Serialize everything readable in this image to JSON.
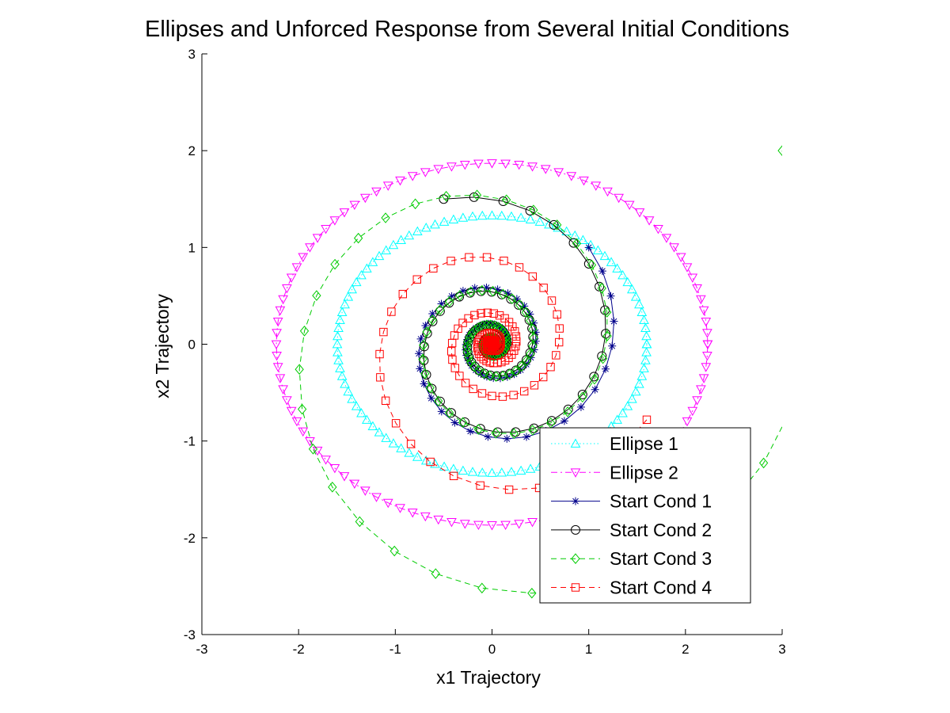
{
  "chart_data": {
    "type": "line",
    "title": "Ellipses and Unforced Response from Several Initial Conditions",
    "xlabel": "x1 Trajectory",
    "ylabel": "x2 Trajectory",
    "xlim": [
      -3,
      3
    ],
    "ylim": [
      -3,
      3
    ],
    "xticks": [
      "-3",
      "-2",
      "-1",
      "0",
      "1",
      "2",
      "3"
    ],
    "yticks": [
      "3",
      "2",
      "1",
      "0",
      "-1",
      "-2",
      "-3"
    ],
    "grid": false,
    "legend_position": "bottom-right",
    "series": [
      {
        "name": "Ellipse 1",
        "kind": "ellipse",
        "rx": 1.6,
        "ry": 1.33,
        "samples": 100,
        "color": "#00ffff",
        "line": "dotted",
        "marker": "triangle-up"
      },
      {
        "name": "Ellipse 2",
        "kind": "ellipse",
        "rx": 2.23,
        "ry": 1.87,
        "samples": 100,
        "color": "#ff00ff",
        "line": "dashdot",
        "marker": "triangle-down"
      },
      {
        "name": "Start Cond 1",
        "kind": "spiral",
        "start": [
          1.0,
          1.0
        ],
        "a": -0.0325,
        "w": 0.2,
        "steps": 130,
        "color": "#00008b",
        "line": "solid",
        "marker": "star"
      },
      {
        "name": "Start Cond 2",
        "kind": "spiral",
        "start": [
          -0.5,
          1.5
        ],
        "a": -0.0325,
        "w": 0.2,
        "steps": 130,
        "color": "#000000",
        "line": "solid",
        "marker": "circle"
      },
      {
        "name": "Start Cond 3",
        "kind": "spiral",
        "start": [
          3.0,
          2.0
        ],
        "a": -0.0325,
        "w": 0.2,
        "steps": 130,
        "color": "#00cc00",
        "line": "dashed",
        "marker": "diamond"
      },
      {
        "name": "Start Cond 4",
        "kind": "spiral",
        "start": [
          1.6,
          -0.78
        ],
        "a": -0.0325,
        "w": 0.2,
        "steps": 130,
        "color": "#ff0000",
        "line": "dashed",
        "marker": "square"
      }
    ]
  }
}
